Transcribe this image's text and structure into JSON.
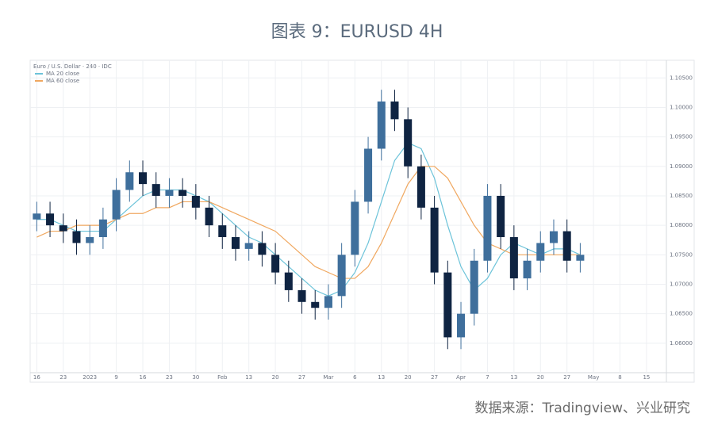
{
  "chart_data": {
    "type": "candlestick",
    "title": "图表 9：EURUSD 4H",
    "subtitle": "Euro / U.S. Dollar · 240 · IDC",
    "source": "数据来源：Tradingview、兴业研究",
    "categories": [
      "16",
      null,
      "23",
      null,
      "2023",
      null,
      "9",
      null,
      "16",
      null,
      "23",
      null,
      "30",
      null,
      "Feb",
      null,
      "13",
      null,
      "20",
      null,
      "27",
      null,
      "Mar",
      null,
      "6",
      null,
      "13",
      null,
      "20",
      null,
      "27",
      null,
      "Apr",
      null,
      "7",
      null,
      "13",
      null,
      "20",
      null,
      "27",
      null,
      "May",
      null,
      "8",
      null,
      "15",
      null
    ],
    "open": [
      1.081,
      1.082,
      1.08,
      1.079,
      1.077,
      1.078,
      1.081,
      1.086,
      1.089,
      1.087,
      1.085,
      1.086,
      1.085,
      1.083,
      1.08,
      1.078,
      1.076,
      1.077,
      1.075,
      1.072,
      1.069,
      1.067,
      1.066,
      1.068,
      1.075,
      1.084,
      1.093,
      1.101,
      1.098,
      1.09,
      1.083,
      1.072,
      1.061,
      1.065,
      1.074,
      1.085,
      1.078,
      1.071,
      1.074,
      1.077,
      1.079,
      1.074,
      null,
      null,
      null,
      null,
      null,
      null
    ],
    "high": [
      1.084,
      1.084,
      1.082,
      1.081,
      1.08,
      1.083,
      1.088,
      1.091,
      1.091,
      1.089,
      1.088,
      1.088,
      1.087,
      1.085,
      1.082,
      1.08,
      1.079,
      1.079,
      1.077,
      1.074,
      1.071,
      1.069,
      1.07,
      1.077,
      1.086,
      1.095,
      1.103,
      1.103,
      1.1,
      1.092,
      1.085,
      1.074,
      1.067,
      1.076,
      1.087,
      1.087,
      1.08,
      1.076,
      1.079,
      1.081,
      1.081,
      1.077,
      null,
      null,
      null,
      null,
      null,
      null
    ],
    "low": [
      1.079,
      1.078,
      1.077,
      1.075,
      1.075,
      1.076,
      1.079,
      1.084,
      1.085,
      1.083,
      1.083,
      1.083,
      1.081,
      1.078,
      1.076,
      1.074,
      1.074,
      1.073,
      1.07,
      1.067,
      1.065,
      1.064,
      1.064,
      1.066,
      1.073,
      1.082,
      1.091,
      1.096,
      1.088,
      1.081,
      1.07,
      1.059,
      1.059,
      1.063,
      1.072,
      1.076,
      1.069,
      1.069,
      1.072,
      1.075,
      1.072,
      1.072,
      null,
      null,
      null,
      null,
      null,
      null
    ],
    "close": [
      1.082,
      1.08,
      1.079,
      1.077,
      1.078,
      1.081,
      1.086,
      1.089,
      1.087,
      1.085,
      1.086,
      1.085,
      1.083,
      1.08,
      1.078,
      1.076,
      1.077,
      1.075,
      1.072,
      1.069,
      1.067,
      1.066,
      1.068,
      1.075,
      1.084,
      1.093,
      1.101,
      1.098,
      1.09,
      1.083,
      1.072,
      1.061,
      1.065,
      1.074,
      1.085,
      1.078,
      1.071,
      1.074,
      1.077,
      1.079,
      1.074,
      1.075,
      null,
      null,
      null,
      null,
      null,
      null
    ],
    "up_color": "#3f6f9c",
    "down_color": "#0f2442",
    "series": [
      {
        "name": "MA 20 close",
        "color": "#6cc3d9",
        "values": [
          1.081,
          1.081,
          1.08,
          1.079,
          1.079,
          1.079,
          1.081,
          1.083,
          1.085,
          1.086,
          1.086,
          1.086,
          1.085,
          1.084,
          1.082,
          1.08,
          1.078,
          1.077,
          1.075,
          1.073,
          1.071,
          1.069,
          1.068,
          1.069,
          1.072,
          1.077,
          1.084,
          1.091,
          1.094,
          1.093,
          1.088,
          1.08,
          1.073,
          1.069,
          1.071,
          1.075,
          1.077,
          1.076,
          1.075,
          1.076,
          1.076,
          1.075,
          null,
          null,
          null,
          null,
          null,
          null
        ]
      },
      {
        "name": "MA 60 close",
        "color": "#f0a860",
        "values": [
          1.078,
          1.079,
          1.079,
          1.08,
          1.08,
          1.08,
          1.081,
          1.082,
          1.082,
          1.083,
          1.083,
          1.084,
          1.084,
          1.084,
          1.083,
          1.082,
          1.081,
          1.08,
          1.079,
          1.077,
          1.075,
          1.073,
          1.072,
          1.071,
          1.071,
          1.073,
          1.077,
          1.082,
          1.087,
          1.09,
          1.09,
          1.088,
          1.084,
          1.08,
          1.077,
          1.076,
          1.075,
          1.075,
          1.075,
          1.075,
          1.075,
          1.075,
          null,
          null,
          null,
          null,
          null,
          null
        ]
      }
    ],
    "ylim": [
      1.055,
      1.108
    ],
    "yticks": [
      {
        "value": 1.06,
        "label": "1.06000"
      },
      {
        "value": 1.065,
        "label": "1.06500"
      },
      {
        "value": 1.07,
        "label": "1.07000"
      },
      {
        "value": 1.075,
        "label": "1.07500"
      },
      {
        "value": 1.08,
        "label": "1.08000"
      },
      {
        "value": 1.085,
        "label": "1.08500"
      },
      {
        "value": 1.09,
        "label": "1.09000"
      },
      {
        "value": 1.095,
        "label": "1.09500"
      },
      {
        "value": 1.1,
        "label": "1.10000"
      },
      {
        "value": 1.105,
        "label": "1.10500"
      }
    ],
    "grid": true
  }
}
